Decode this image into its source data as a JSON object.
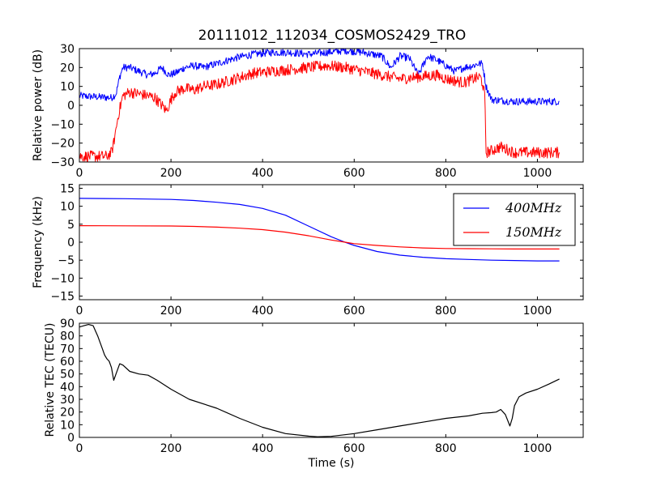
{
  "chart_data": [
    {
      "type": "line",
      "title": "20111012_112034_COSMOS2429_TRO",
      "xlabel": "",
      "ylabel": "Relative power (dB)",
      "xlim": [
        0,
        1100
      ],
      "ylim": [
        -30,
        30
      ],
      "xticks": [
        "0",
        "200",
        "400",
        "600",
        "800",
        "1000"
      ],
      "yticks": [
        "30",
        "20",
        "10",
        "0",
        "−10",
        "−20",
        "−30"
      ],
      "grid": false,
      "noise": [
        2,
        3
      ],
      "series": [
        {
          "color": "#0000ff",
          "x": [
            0,
            70,
            80,
            88,
            95,
            110,
            130,
            150,
            165,
            180,
            195,
            210,
            230,
            250,
            270,
            300,
            340,
            380,
            420,
            460,
            500,
            540,
            580,
            620,
            660,
            680,
            700,
            720,
            740,
            760,
            780,
            800,
            820,
            840,
            860,
            870,
            880,
            888,
            900,
            950,
            1000,
            1048
          ],
          "y": [
            5,
            4,
            6,
            15,
            20,
            20,
            18,
            16,
            17,
            20,
            16,
            17,
            20,
            21,
            20,
            22,
            25,
            27,
            28,
            28,
            27,
            28,
            29,
            28,
            26,
            20,
            26,
            25,
            16,
            26,
            24,
            21,
            18,
            20,
            21,
            22,
            22,
            10,
            3,
            2,
            2,
            2
          ]
        },
        {
          "color": "#ff0000",
          "x": [
            0,
            60,
            70,
            75,
            85,
            95,
            110,
            130,
            150,
            165,
            180,
            190,
            200,
            210,
            230,
            250,
            270,
            300,
            340,
            380,
            420,
            460,
            500,
            540,
            580,
            620,
            660,
            700,
            740,
            780,
            800,
            820,
            840,
            860,
            875,
            880,
            885,
            888,
            900,
            920,
            950,
            1000,
            1048
          ],
          "y": [
            -27,
            -27,
            -25,
            -20,
            -5,
            5,
            7,
            6,
            5,
            4,
            0,
            -3,
            3,
            7,
            9,
            8,
            10,
            11,
            14,
            17,
            18,
            19,
            20,
            21,
            20,
            18,
            16,
            14,
            15,
            16,
            14,
            13,
            12,
            14,
            15,
            12,
            5,
            -25,
            -24,
            -22,
            -25,
            -25,
            -25
          ]
        }
      ]
    },
    {
      "type": "line",
      "title": "",
      "xlabel": "",
      "ylabel": "Frequency (kHz)",
      "xlim": [
        0,
        1100
      ],
      "ylim": [
        -16,
        16
      ],
      "xticks": [
        "0",
        "200",
        "400",
        "600",
        "800",
        "1000"
      ],
      "yticks": [
        "15",
        "10",
        "5",
        "0",
        "−5",
        "−10",
        "−15"
      ],
      "grid": false,
      "legend": "top-right",
      "series": [
        {
          "name": "400MHz",
          "color": "#0000ff",
          "x": [
            0,
            100,
            200,
            250,
            300,
            350,
            400,
            450,
            500,
            550,
            580,
            600,
            650,
            700,
            750,
            800,
            850,
            900,
            950,
            1000,
            1048
          ],
          "y": [
            12.2,
            12.1,
            11.9,
            11.6,
            11.1,
            10.5,
            9.4,
            7.5,
            4.5,
            1.5,
            0,
            -0.9,
            -2.6,
            -3.6,
            -4.2,
            -4.6,
            -4.8,
            -5.0,
            -5.1,
            -5.2,
            -5.2
          ]
        },
        {
          "name": "150MHz",
          "color": "#ff0000",
          "x": [
            0,
            100,
            200,
            250,
            300,
            350,
            400,
            450,
            500,
            550,
            580,
            600,
            650,
            700,
            750,
            800,
            850,
            900,
            950,
            1000,
            1048
          ],
          "y": [
            4.6,
            4.55,
            4.5,
            4.4,
            4.2,
            3.9,
            3.5,
            2.8,
            1.8,
            0.6,
            0,
            -0.4,
            -0.9,
            -1.3,
            -1.6,
            -1.75,
            -1.8,
            -1.85,
            -1.9,
            -1.9,
            -1.9
          ]
        }
      ]
    },
    {
      "type": "line",
      "title": "",
      "xlabel": "Time (s)",
      "ylabel": "Relative TEC (TECU)",
      "xlim": [
        0,
        1100
      ],
      "ylim": [
        0,
        90
      ],
      "xticks": [
        "0",
        "200",
        "400",
        "600",
        "800",
        "1000"
      ],
      "yticks": [
        "90",
        "80",
        "70",
        "60",
        "50",
        "40",
        "30",
        "20",
        "10",
        "0"
      ],
      "grid": false,
      "series": [
        {
          "color": "#000000",
          "x": [
            0,
            10,
            20,
            30,
            40,
            50,
            55,
            60,
            65,
            70,
            75,
            80,
            88,
            95,
            110,
            130,
            150,
            170,
            200,
            240,
            300,
            350,
            400,
            450,
            500,
            520,
            550,
            600,
            650,
            700,
            750,
            800,
            850,
            880,
            900,
            910,
            920,
            930,
            940,
            945,
            950,
            960,
            975,
            1000,
            1025,
            1048
          ],
          "y": [
            87,
            88,
            89,
            88,
            80,
            70,
            65,
            62,
            60,
            55,
            45,
            50,
            58,
            57,
            52,
            50,
            49,
            45,
            38,
            30,
            23,
            15,
            8,
            3,
            1,
            0.5,
            0.8,
            3,
            6,
            9,
            12,
            15,
            17,
            19,
            19.5,
            20,
            22,
            18,
            9,
            15,
            25,
            32,
            35,
            38,
            42,
            46
          ]
        }
      ]
    }
  ]
}
